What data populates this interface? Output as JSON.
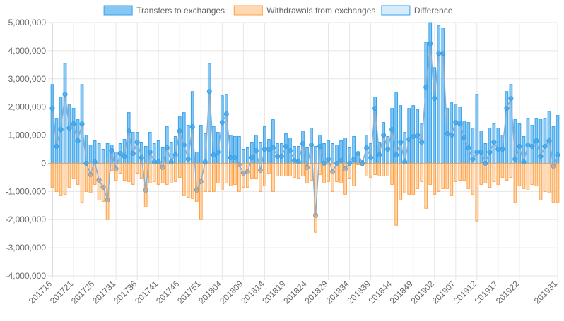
{
  "chart_data": {
    "type": "bar",
    "categories": [
      "201716",
      null,
      null,
      null,
      null,
      "201721",
      null,
      null,
      null,
      null,
      "201726",
      null,
      null,
      null,
      null,
      "201731",
      null,
      null,
      null,
      null,
      "201736",
      null,
      null,
      null,
      null,
      "201741",
      null,
      null,
      null,
      null,
      "201746",
      null,
      null,
      null,
      null,
      "201751",
      null,
      null,
      null,
      null,
      "201804",
      null,
      null,
      null,
      null,
      "201809",
      null,
      null,
      null,
      null,
      "201814",
      null,
      null,
      null,
      null,
      "201819",
      null,
      null,
      null,
      null,
      "201824",
      null,
      null,
      null,
      null,
      "201829",
      null,
      null,
      null,
      null,
      "201834",
      null,
      null,
      null,
      null,
      "201839",
      null,
      null,
      null,
      null,
      "201844",
      null,
      null,
      null,
      null,
      "201849",
      null,
      null,
      null,
      null,
      "201902",
      null,
      null,
      null,
      null,
      "201907",
      null,
      null,
      null,
      null,
      "201912",
      null,
      null,
      null,
      null,
      "201917",
      null,
      null,
      null,
      null,
      "201922",
      null,
      null,
      null,
      null,
      null,
      null,
      null,
      null,
      "201931"
    ],
    "series": [
      {
        "name": "Transfers to exchanges",
        "color": "#36a2eb",
        "fill": "rgba(54,162,235,0.6)",
        "values": [
          2800000,
          1600000,
          2350000,
          3550000,
          2100000,
          1950000,
          1550000,
          2800000,
          1000000,
          650000,
          800000,
          700000,
          500000,
          700000,
          650000,
          400000,
          700000,
          850000,
          1800000,
          1100000,
          1100000,
          750000,
          600000,
          1100000,
          700000,
          800000,
          550000,
          1300000,
          750000,
          950000,
          1650000,
          1800000,
          1350000,
          2550000,
          400000,
          1350000,
          1050000,
          3550000,
          1300000,
          1100000,
          2400000,
          2450000,
          1000000,
          950000,
          950000,
          500000,
          550000,
          750000,
          1000000,
          750000,
          1300000,
          850000,
          1550000,
          700000,
          700000,
          1050000,
          900000,
          600000,
          600000,
          1150000,
          550000,
          1250000,
          600000,
          1000000,
          700000,
          800000,
          700000,
          650000,
          800000,
          900000,
          550000,
          950000,
          400000,
          100000,
          1000000,
          700000,
          2350000,
          750000,
          1450000,
          950000,
          1950000,
          2500000,
          2050000,
          1100000,
          1950000,
          2050000,
          1900000,
          1400000,
          4300000,
          5000000,
          3400000,
          4900000,
          4800000,
          1950000,
          2150000,
          2100000,
          2000000,
          1500000,
          1450000,
          1250000,
          2450000,
          1150000,
          700000,
          1250000,
          1400000,
          1250000,
          1000000,
          2550000,
          2800000,
          1550000,
          1400000,
          950000,
          1600000,
          1350000,
          1600000,
          1550000,
          1600000,
          1850000,
          1300000,
          1700000
        ]
      },
      {
        "name": "Withdrawals from exchanges",
        "color": "#ff9f40",
        "fill": "rgba(255,159,64,0.4)",
        "values": [
          -850000,
          -1000000,
          -1150000,
          -1100000,
          -850000,
          -550000,
          -750000,
          -1400000,
          -1000000,
          -1050000,
          -750000,
          -1300000,
          -1350000,
          -2000000,
          -250000,
          -600000,
          -350000,
          -600000,
          -650000,
          -750000,
          -350000,
          -550000,
          -1550000,
          -700000,
          -650000,
          -750000,
          -700000,
          -750000,
          -700000,
          -650000,
          -500000,
          -1150000,
          -1200000,
          -1250000,
          -1350000,
          -2000000,
          -1000000,
          -1000000,
          -1000000,
          -700000,
          -950000,
          -700000,
          -800000,
          -750000,
          -1000000,
          -850000,
          -850000,
          -550000,
          -550000,
          -1000000,
          -800000,
          -350000,
          -1000000,
          -450000,
          -450000,
          -450000,
          -450000,
          -500000,
          -550000,
          -450000,
          -700000,
          -600000,
          -2450000,
          -400000,
          -700000,
          -650000,
          -1000000,
          -650000,
          -700000,
          -1100000,
          -550000,
          -800000,
          -50000,
          -100000,
          -450000,
          -500000,
          -400000,
          -450000,
          -450000,
          -450000,
          -750000,
          -2200000,
          -1300000,
          -1050000,
          -1100000,
          -1100000,
          -900000,
          -650000,
          -1600000,
          -750000,
          -1100000,
          -1000000,
          -900000,
          -900000,
          -1150000,
          -650000,
          -600000,
          -600000,
          -900000,
          -1100000,
          -2050000,
          -750000,
          -700000,
          -850000,
          -650000,
          -750000,
          -500000,
          -600000,
          -500000,
          -1400000,
          -800000,
          -900000,
          -950000,
          -750000,
          -800000,
          -1300000,
          -1000000,
          -1050000,
          -1400000,
          -1400000
        ]
      },
      {
        "name": "Difference",
        "type": "line",
        "color": "#36a2eb",
        "fill": "rgba(54,162,235,0.2)",
        "values": [
          1950000,
          600000,
          1200000,
          2450000,
          1250000,
          1400000,
          800000,
          1400000,
          0,
          -400000,
          50000,
          -600000,
          -850000,
          -1300000,
          450000,
          -200000,
          350000,
          250000,
          1150000,
          350000,
          750000,
          200000,
          -950000,
          400000,
          50000,
          50000,
          -150000,
          550000,
          50000,
          300000,
          1150000,
          650000,
          150000,
          1300000,
          -950000,
          -650000,
          50000,
          2550000,
          300000,
          400000,
          1450000,
          1750000,
          200000,
          200000,
          -50000,
          -350000,
          -300000,
          200000,
          450000,
          -250000,
          500000,
          500000,
          550000,
          250000,
          250000,
          600000,
          450000,
          100000,
          50000,
          700000,
          -150000,
          650000,
          -1850000,
          600000,
          0,
          150000,
          -300000,
          0,
          100000,
          -200000,
          0,
          150000,
          350000,
          0,
          550000,
          200000,
          1950000,
          300000,
          1000000,
          500000,
          1200000,
          300000,
          750000,
          50000,
          850000,
          950000,
          1000000,
          750000,
          2700000,
          4250000,
          2300000,
          3900000,
          3900000,
          1050000,
          1000000,
          1450000,
          1400000,
          900000,
          550000,
          150000,
          400000,
          400000,
          0,
          400000,
          750000,
          500000,
          500000,
          1950000,
          2300000,
          150000,
          600000,
          50000,
          650000,
          600000,
          800000,
          250000,
          600000,
          800000,
          -100000,
          300000
        ]
      }
    ],
    "ylim": [
      -4000000,
      5000000
    ],
    "yticks": [
      {
        "value": -4000000,
        "label": "-4,000,000"
      },
      {
        "value": -3000000,
        "label": "-3,000,000"
      },
      {
        "value": -2000000,
        "label": "-2,000,000"
      },
      {
        "value": -1000000,
        "label": "-1,000,000"
      },
      0,
      {
        "value": 1000000,
        "label": "1,000,000"
      },
      {
        "value": 2000000,
        "label": "2,000,000"
      },
      {
        "value": 3000000,
        "label": "3,000,000"
      },
      {
        "value": 4000000,
        "label": "4,000,000"
      },
      {
        "value": 5000000,
        "label": "5,000,000"
      }
    ],
    "grid": true,
    "legend": "top"
  }
}
